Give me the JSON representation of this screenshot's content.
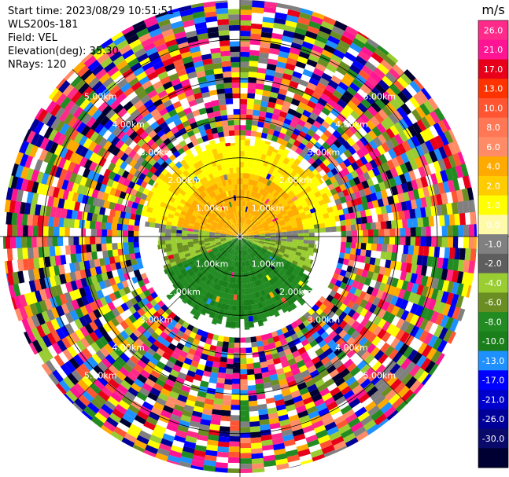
{
  "header": {
    "start_time": "Start time: 2023/08/29 10:51:51",
    "instrument": "WLS200s-181",
    "field": "Field: VEL",
    "elevation": "Elevation(deg): 35.30",
    "nrays": "NRays: 120"
  },
  "chart_data": {
    "type": "heatmap",
    "projection": "polar-ppi",
    "title": "",
    "field": "VEL",
    "range_unit": "km",
    "max_range_km": 6.0,
    "range_ring_labels": [
      "1.00km",
      "2.00km",
      "3.00km",
      "4.00km",
      "5.00km"
    ],
    "rays": 120,
    "noise_beyond_km": 2.7,
    "colorbar": {
      "unit": "m/s",
      "tick_labels": [
        "26.0",
        "21.0",
        "17.0",
        "13.0",
        "10.0",
        "8.0",
        "6.0",
        "4.0",
        "2.0",
        "1.0",
        "0.0",
        "-1.0",
        "-2.0",
        "-4.0",
        "-6.0",
        "-8.0",
        "-10.0",
        "-13.0",
        "-17.0",
        "-21.0",
        "-26.0",
        "-30.0"
      ],
      "colors": [
        "#ff2a8a",
        "#ff1493",
        "#e8001a",
        "#ff3300",
        "#ff5533",
        "#ff7755",
        "#ff8c66",
        "#ffaa00",
        "#ffcc00",
        "#ffff00",
        "#fff9aa",
        "#808080",
        "#5e5e5e",
        "#9acd32",
        "#6b8e23",
        "#228b22",
        "#1a7f1a",
        "#1e90ff",
        "#0000ff",
        "#0000cc",
        "#000099",
        "#0a0a6b",
        "#000033"
      ]
    },
    "noise_palette": [
      "#ff1493",
      "#0000ff",
      "#ffff00",
      "#228b22",
      "#1e90ff",
      "#9acd32",
      "#ff5533",
      "#808080",
      "#e8001a",
      "#000099",
      "#ffaa00",
      "#ff2a8a",
      "#6b8e23",
      "#000033",
      "#ff8c66"
    ]
  }
}
